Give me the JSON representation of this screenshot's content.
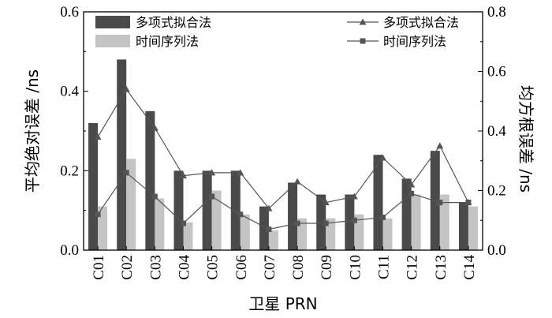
{
  "chart_data": {
    "type": "bar+line",
    "categories": [
      "C01",
      "C02",
      "C03",
      "C04",
      "C05",
      "C06",
      "C07",
      "C08",
      "C09",
      "C10",
      "C11",
      "C12",
      "C13",
      "C14"
    ],
    "xlabel": "卫星 PRN",
    "ylabel_left": "平均绝对误差 /ns",
    "ylabel_right": "均方根误差 /ns",
    "ylim_left": [
      0,
      0.6
    ],
    "ylim_right": [
      0,
      0.8
    ],
    "yticks_left": [
      "0.0",
      "0.2",
      "0.4",
      "0.6"
    ],
    "yticks_right": [
      "0.0",
      "0.2",
      "0.4",
      "0.6",
      "0.8"
    ],
    "bar_series": [
      {
        "name": "多项式拟合法",
        "color": "#4a4a4a",
        "values": [
          0.32,
          0.48,
          0.35,
          0.2,
          0.2,
          0.2,
          0.11,
          0.17,
          0.14,
          0.14,
          0.24,
          0.18,
          0.25,
          0.12
        ]
      },
      {
        "name": "时间序列法",
        "color": "#c4c4c4",
        "values": [
          0.11,
          0.23,
          0.13,
          0.07,
          0.15,
          0.09,
          0.05,
          0.08,
          0.08,
          0.09,
          0.08,
          0.14,
          0.14,
          0.11
        ]
      }
    ],
    "line_series": [
      {
        "name": "多项式拟合法",
        "marker": "triangle",
        "color": "#555555",
        "values": [
          0.38,
          0.54,
          0.41,
          0.25,
          0.26,
          0.26,
          0.14,
          0.23,
          0.16,
          0.18,
          0.31,
          0.22,
          0.35,
          0.16
        ]
      },
      {
        "name": "时间序列法",
        "marker": "square",
        "color": "#555555",
        "values": [
          0.12,
          0.26,
          0.18,
          0.09,
          0.18,
          0.12,
          0.07,
          0.09,
          0.09,
          0.1,
          0.11,
          0.19,
          0.16,
          0.16
        ]
      }
    ],
    "legend_position": "top",
    "grid": false
  }
}
